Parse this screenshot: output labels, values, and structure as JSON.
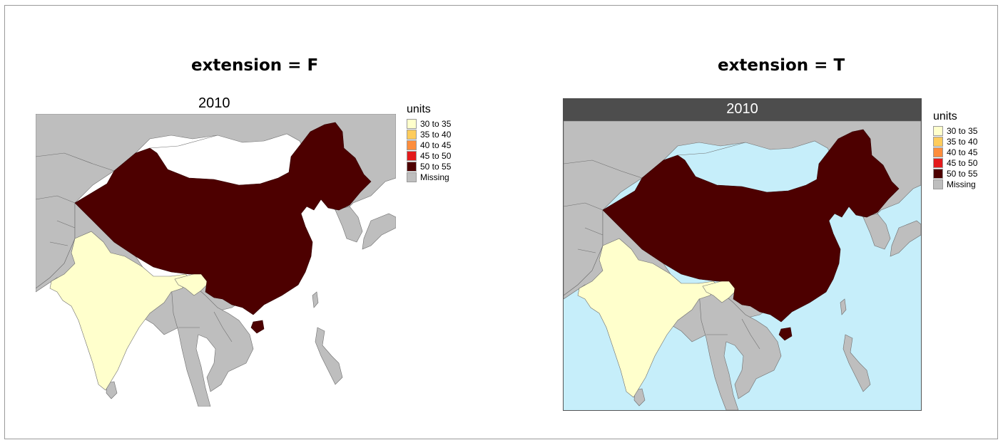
{
  "panels": [
    {
      "heading": "extension = F",
      "year": "2010",
      "legend": {
        "title": "units",
        "items": [
          {
            "label": "30 to 35",
            "color": "#FFFFCC"
          },
          {
            "label": "35 to 40",
            "color": "#FECC5C"
          },
          {
            "label": "40 to 45",
            "color": "#FD8D3C"
          },
          {
            "label": "45 to 50",
            "color": "#E31A1C"
          },
          {
            "label": "50 to 55",
            "color": "#4D0000"
          },
          {
            "label": "Missing",
            "color": "#BEBEBE"
          }
        ]
      }
    },
    {
      "heading": "extension = T",
      "year": "2010",
      "legend": {
        "title": "units",
        "items": [
          {
            "label": "30 to 35",
            "color": "#FFFFCC"
          },
          {
            "label": "35 to 40",
            "color": "#FECC5C"
          },
          {
            "label": "40 to 45",
            "color": "#FD8D3C"
          },
          {
            "label": "45 to 50",
            "color": "#E31A1C"
          },
          {
            "label": "50 to 55",
            "color": "#4D0000"
          },
          {
            "label": "Missing",
            "color": "#BEBEBE"
          }
        ]
      }
    }
  ],
  "colors": {
    "missing": "#BEBEBE",
    "sea": "#C6EEFA",
    "strip": "#4D4D4D",
    "china": "#4D0000",
    "india": "#FFFFCC"
  }
}
